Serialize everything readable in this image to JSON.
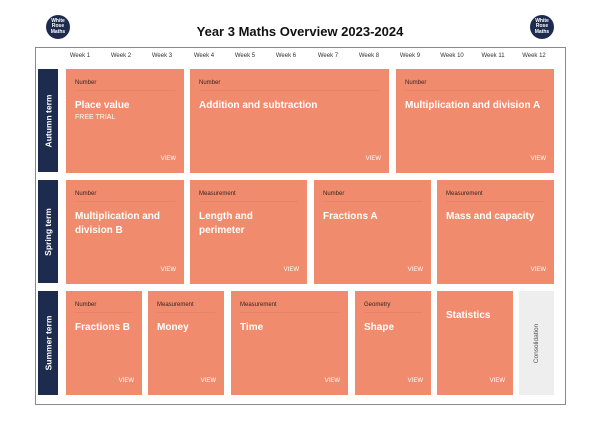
{
  "header": {
    "title": "Year 3 Maths Overview 2023-2024",
    "logo_lines": [
      "White",
      "Rose",
      "Maths"
    ]
  },
  "weeks": [
    "Week 1",
    "Week 2",
    "Week 3",
    "Week 4",
    "Week 5",
    "Week 6",
    "Week 7",
    "Week 8",
    "Week 9",
    "Week 10",
    "Week 11",
    "Week 12"
  ],
  "terms": {
    "autumn": {
      "label": "Autumn term",
      "blocks": [
        {
          "category": "Number",
          "topic": "Place value",
          "note": "FREE TRIAL",
          "action": "VIEW"
        },
        {
          "category": "Number",
          "topic": "Addition and subtraction",
          "action": "VIEW"
        },
        {
          "category": "Number",
          "topic": "Multiplication and division A",
          "action": "VIEW"
        }
      ]
    },
    "spring": {
      "label": "Spring term",
      "blocks": [
        {
          "category": "Number",
          "topic": "Multiplication and division B",
          "action": "VIEW"
        },
        {
          "category": "Measurement",
          "topic": "Length and perimeter",
          "action": "VIEW"
        },
        {
          "category": "Number",
          "topic": "Fractions A",
          "action": "VIEW"
        },
        {
          "category": "Measurement",
          "topic": "Mass and capacity",
          "action": "VIEW"
        }
      ]
    },
    "summer": {
      "label": "Summer term",
      "blocks": [
        {
          "category": "Number",
          "topic": "Fractions B",
          "action": "VIEW"
        },
        {
          "category": "Measurement",
          "topic": "Money",
          "action": "VIEW"
        },
        {
          "category": "Measurement",
          "topic": "Time",
          "action": "VIEW"
        },
        {
          "category": "Geometry",
          "topic": "Shape",
          "action": "VIEW"
        },
        {
          "category": "",
          "topic": "Statistics",
          "action": "VIEW"
        }
      ],
      "consolidation": "Consolidation"
    }
  },
  "colors": {
    "term_bar": "#1d2b4f",
    "block": "#f08b6d",
    "consolidation": "#eeeeee"
  }
}
